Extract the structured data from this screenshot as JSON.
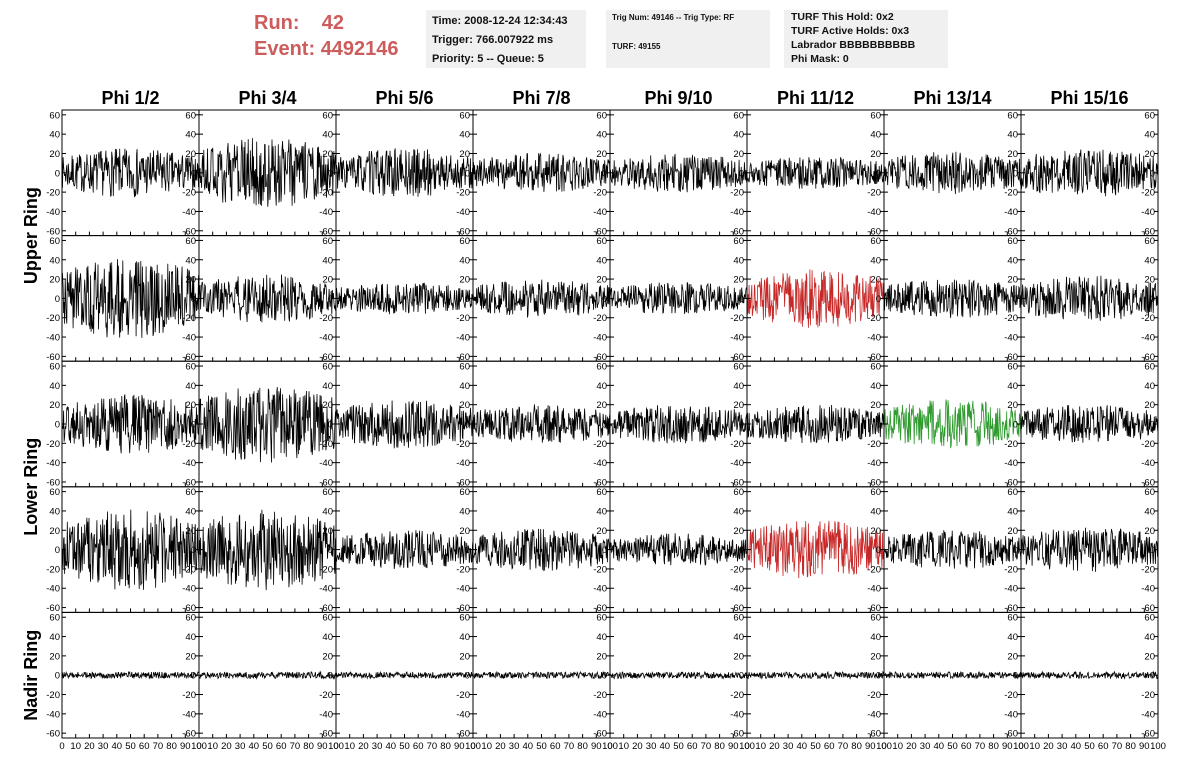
{
  "header": {
    "run_label": "Run:",
    "run_value": "42",
    "event_label": "Event:",
    "event_value": "4492146",
    "time": "Time: 2008-12-24 12:34:43",
    "trigger": "Trigger: 766.007922 ms",
    "priority": "Priority: 5 -- Queue: 5",
    "trig_num": "Trig Num: 49146 -- Trig Type: RF",
    "turf": "TURF: 49155",
    "turf_hold": "TURF This Hold: 0x2",
    "turf_active": "TURF Active Holds: 0x3",
    "labrador": "Labrador BBBBBBBBBB",
    "phi_mask": "Phi Mask: 0"
  },
  "chart_data": {
    "type": "line",
    "columns": [
      "Phi 1/2",
      "Phi 3/4",
      "Phi 5/6",
      "Phi 7/8",
      "Phi 9/10",
      "Phi 11/12",
      "Phi 13/14",
      "Phi 15/16"
    ],
    "rows": [
      "Upper Ring",
      "Lower Ring",
      "Nadir Ring"
    ],
    "panel_rows": 5,
    "row_groups": [
      {
        "label": "Upper Ring",
        "panels": [
          0,
          1
        ]
      },
      {
        "label": "Lower Ring",
        "panels": [
          2,
          3
        ]
      },
      {
        "label": "Nadir Ring",
        "panels": [
          4
        ]
      }
    ],
    "xlim": [
      0,
      100
    ],
    "ylim": [
      -65,
      65
    ],
    "x_ticks": [
      0,
      10,
      20,
      30,
      40,
      50,
      60,
      70,
      80,
      90,
      100
    ],
    "x_tick_labels": [
      "0",
      "10",
      "20",
      "30",
      "40",
      "50",
      "60",
      "70",
      "80",
      "90",
      "100"
    ],
    "y_ticks": [
      -60,
      -40,
      -20,
      0,
      20,
      40,
      60
    ],
    "y_tick_labels": [
      "-60",
      "-40",
      "-20",
      "0",
      "20",
      "40",
      "60"
    ],
    "samples": 260,
    "grid": false,
    "colors": {
      "default": "#000000",
      "red": "#c62828",
      "green": "#2e9a2e",
      "header_red": "#cd5c5c"
    },
    "amplitude": [
      [
        15,
        22,
        15,
        12,
        12,
        10,
        13,
        15
      ],
      [
        25,
        15,
        10,
        12,
        10,
        18,
        12,
        14
      ],
      [
        18,
        24,
        15,
        12,
        12,
        12,
        15,
        12
      ],
      [
        25,
        25,
        12,
        13,
        10,
        18,
        12,
        14
      ],
      [
        2,
        2,
        2,
        2,
        2,
        2,
        2,
        2
      ]
    ],
    "highlighted": [
      {
        "row": 1,
        "col": 5,
        "color": "red"
      },
      {
        "row": 2,
        "col": 6,
        "color": "green"
      },
      {
        "row": 3,
        "col": 5,
        "color": "red"
      }
    ]
  }
}
